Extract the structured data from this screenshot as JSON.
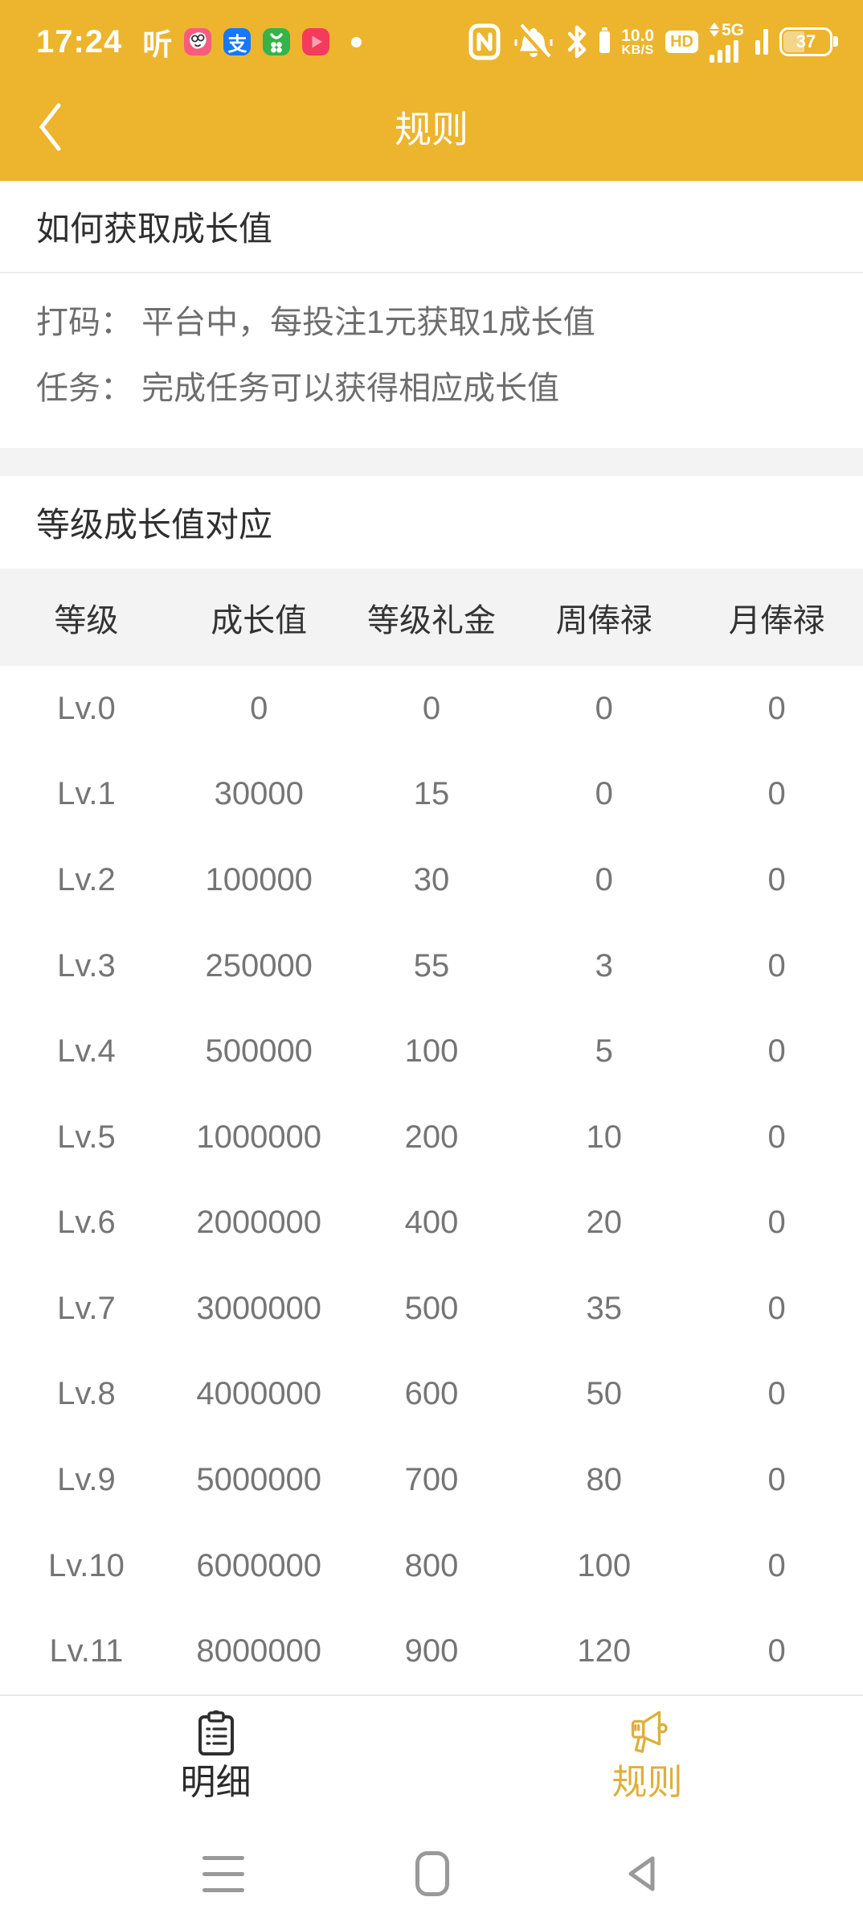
{
  "colors": {
    "primary_yellow": "#ECB52D",
    "active_tab_yellow": "#DFAF3C",
    "alipay_blue": "#1677FF",
    "badge_pink": "#F75C80",
    "badge_green": "#36B34A",
    "badge_red": "#F43B5C",
    "table_header_bg": "#F3F3F3",
    "text_dark": "#2F2F2F",
    "text_gray": "#757575"
  },
  "status_bar": {
    "time": "17:24",
    "ting_glyph": "听",
    "alipay_glyph": "支",
    "left_icons": [
      "ting-badge",
      "pipi-app",
      "alipay-app",
      "app-market-app",
      "video-app",
      "notification-dot"
    ],
    "right_icons": [
      "nfc",
      "mute-bell",
      "bluetooth",
      "bluetooth-battery",
      "net-speed",
      "hd",
      "signal-5g",
      "signal-sim2",
      "battery"
    ],
    "net_speed_value": "10.0",
    "net_speed_unit": "KB/S",
    "hd_label": "HD",
    "network_label": "5G",
    "battery_percent": "37"
  },
  "header": {
    "title": "规则"
  },
  "sections": {
    "how": {
      "title": "如何获取成长值",
      "lines": [
        "打码： 平台中，每投注1元获取1成长值",
        "任务： 完成任务可以获得相应成长值"
      ]
    },
    "levels": {
      "title": "等级成长值对应"
    }
  },
  "table": {
    "headers": [
      "等级",
      "成长值",
      "等级礼金",
      "周俸禄",
      "月俸禄"
    ],
    "rows": [
      [
        "Lv.0",
        "0",
        "0",
        "0",
        "0"
      ],
      [
        "Lv.1",
        "30000",
        "15",
        "0",
        "0"
      ],
      [
        "Lv.2",
        "100000",
        "30",
        "0",
        "0"
      ],
      [
        "Lv.3",
        "250000",
        "55",
        "3",
        "0"
      ],
      [
        "Lv.4",
        "500000",
        "100",
        "5",
        "0"
      ],
      [
        "Lv.5",
        "1000000",
        "200",
        "10",
        "0"
      ],
      [
        "Lv.6",
        "2000000",
        "400",
        "20",
        "0"
      ],
      [
        "Lv.7",
        "3000000",
        "500",
        "35",
        "0"
      ],
      [
        "Lv.8",
        "4000000",
        "600",
        "50",
        "0"
      ],
      [
        "Lv.9",
        "5000000",
        "700",
        "80",
        "0"
      ],
      [
        "Lv.10",
        "6000000",
        "800",
        "100",
        "0"
      ],
      [
        "Lv.11",
        "8000000",
        "900",
        "120",
        "0"
      ]
    ]
  },
  "tab_bar": {
    "items": [
      {
        "label": "明细",
        "icon": "clipboard-icon",
        "active": false
      },
      {
        "label": "规则",
        "icon": "megaphone-icon",
        "active": true
      }
    ]
  },
  "android_nav": [
    "menu-key",
    "home-key",
    "back-key"
  ]
}
